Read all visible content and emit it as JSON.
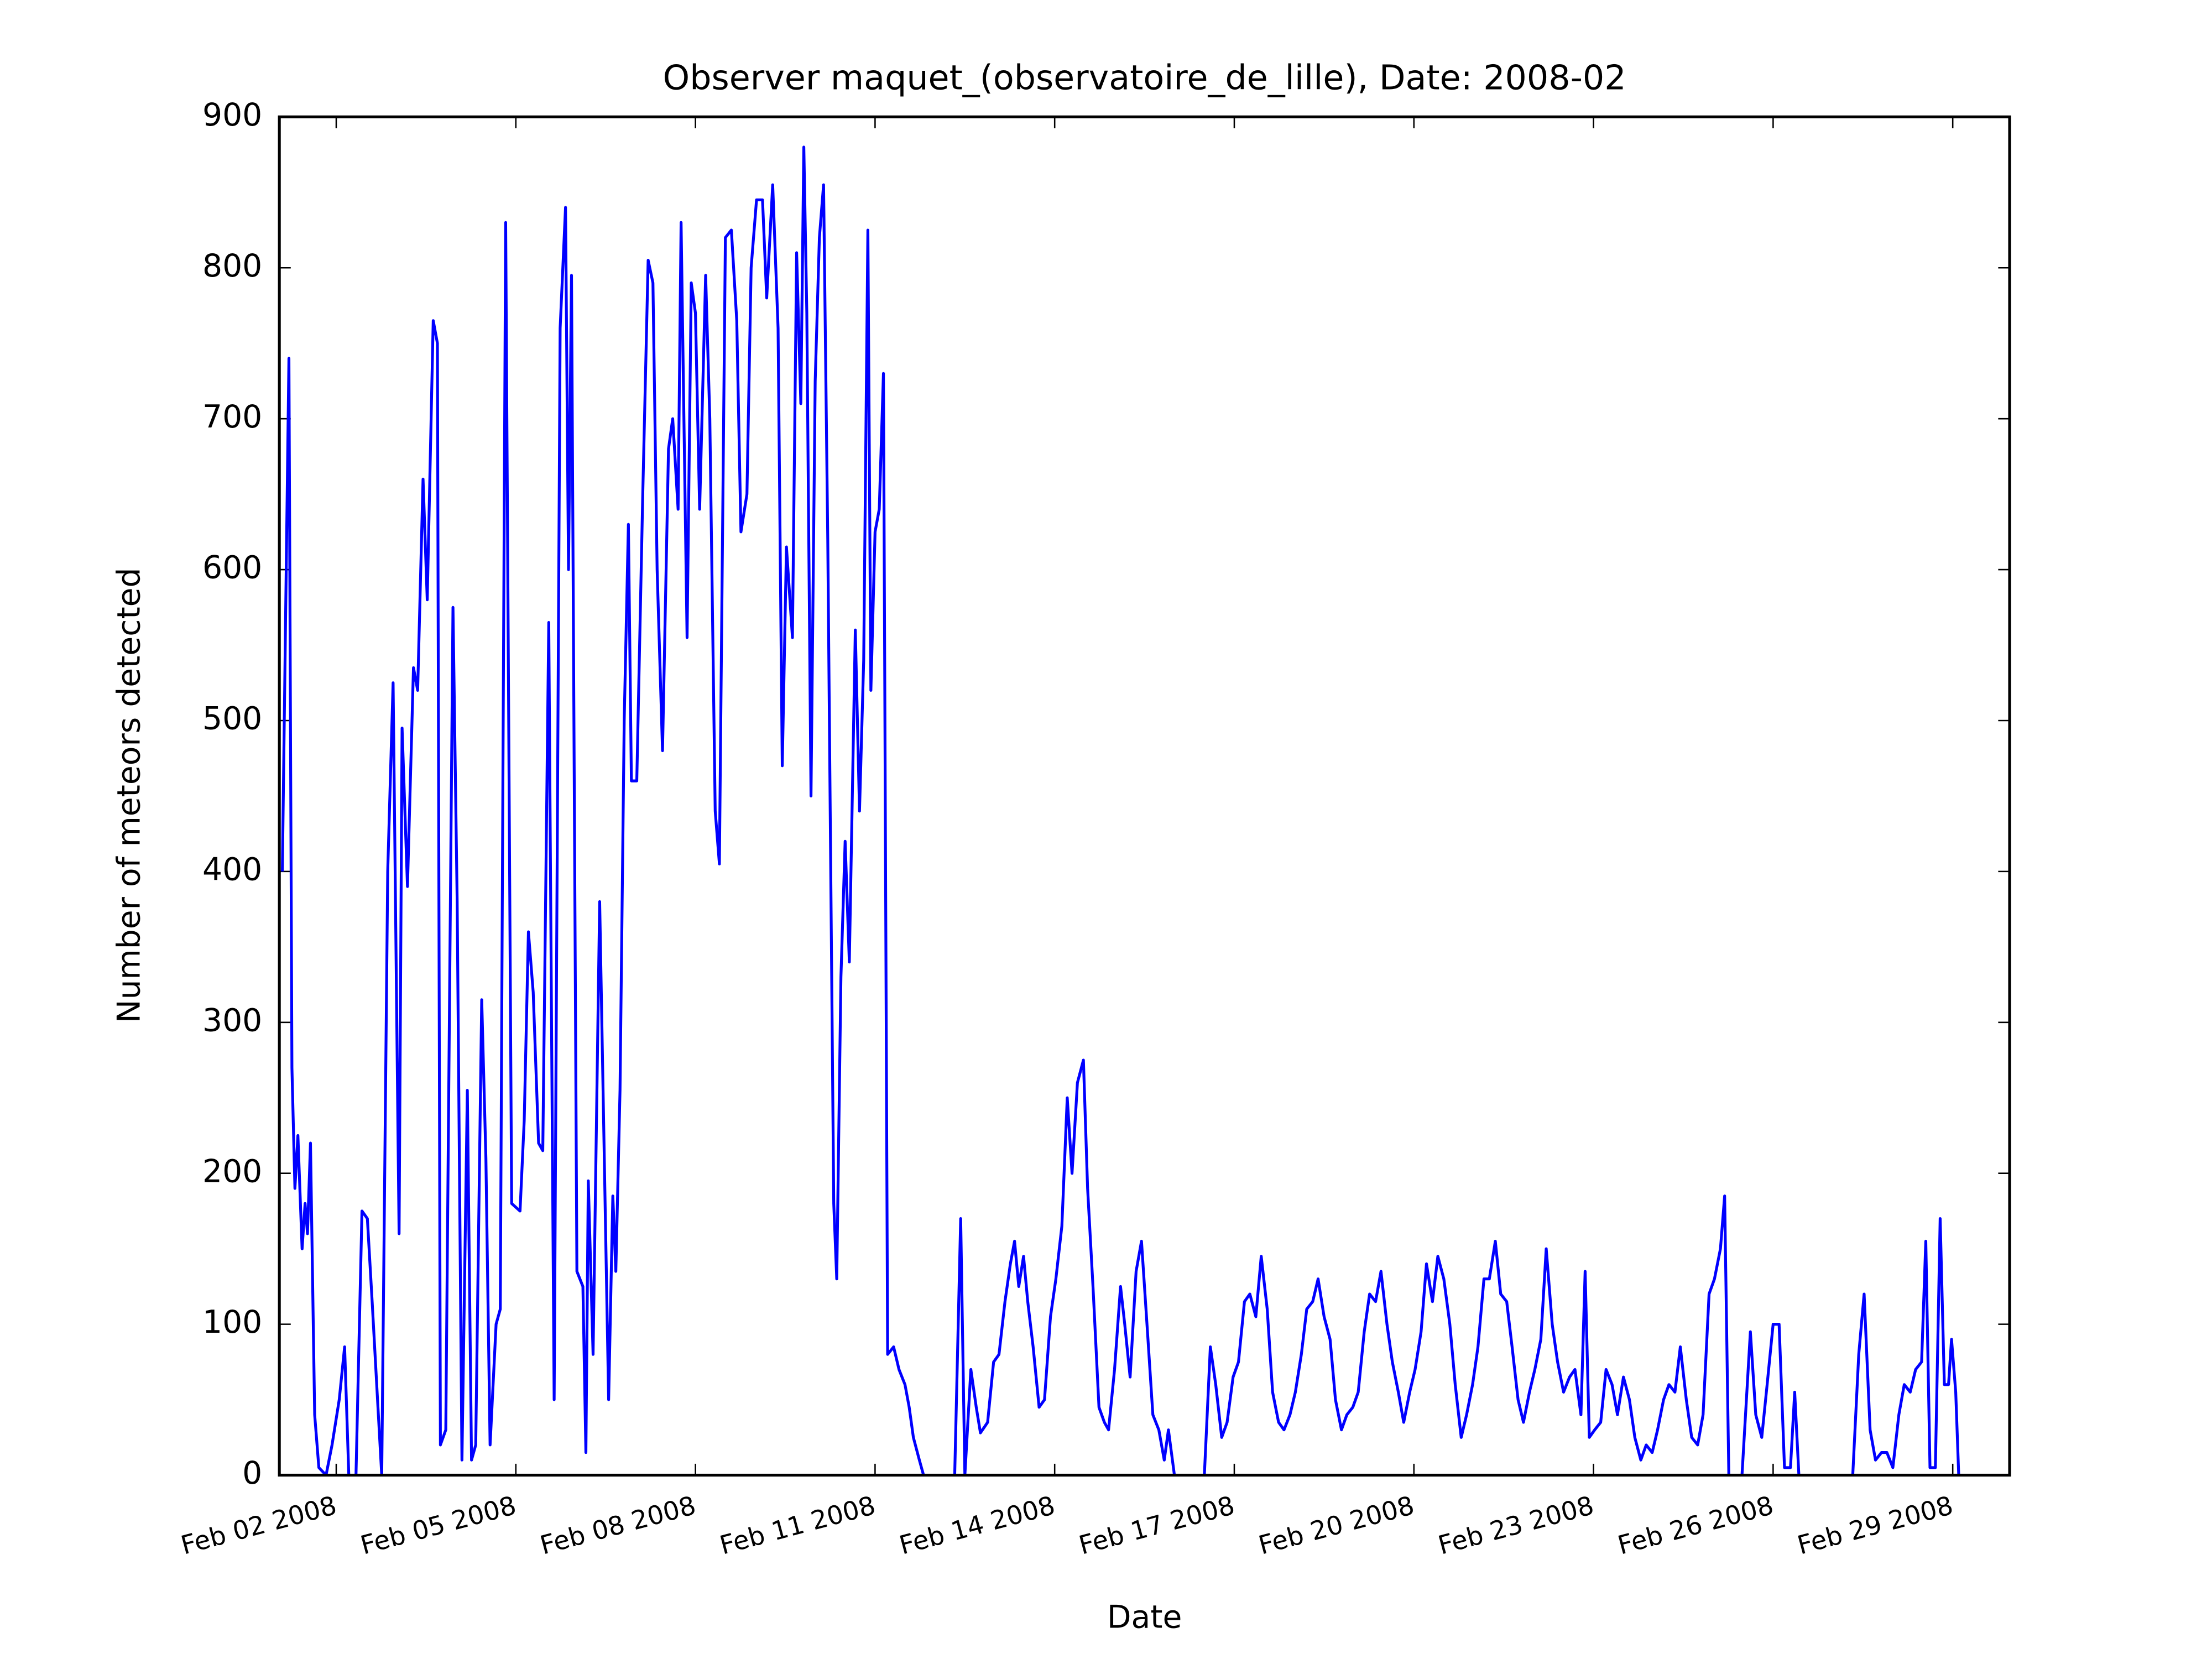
{
  "chart_data": {
    "type": "line",
    "title": "Observer maquet_(observatoire_de_lille), Date: 2008-02",
    "xlabel": "Date",
    "ylabel": "Number of meteors detected",
    "color": "#0000ff",
    "grid": false,
    "xlim": [
      1.05,
      29.95
    ],
    "ylim": [
      0,
      900
    ],
    "xticks": [
      {
        "value": 2,
        "label": "Feb 02 2008"
      },
      {
        "value": 5,
        "label": "Feb 05 2008"
      },
      {
        "value": 8,
        "label": "Feb 08 2008"
      },
      {
        "value": 11,
        "label": "Feb 11 2008"
      },
      {
        "value": 14,
        "label": "Feb 14 2008"
      },
      {
        "value": 17,
        "label": "Feb 17 2008"
      },
      {
        "value": 20,
        "label": "Feb 20 2008"
      },
      {
        "value": 23,
        "label": "Feb 23 2008"
      },
      {
        "value": 26,
        "label": "Feb 26 2008"
      },
      {
        "value": 29,
        "label": "Feb 29 2008"
      }
    ],
    "yticks": [
      0,
      100,
      200,
      300,
      400,
      500,
      600,
      700,
      800,
      900
    ],
    "x": [
      1.1,
      1.21,
      1.26,
      1.31,
      1.36,
      1.43,
      1.48,
      1.52,
      1.57,
      1.64,
      1.71,
      1.83,
      1.93,
      2.05,
      2.14,
      2.21,
      2.33,
      2.43,
      2.52,
      2.6,
      2.69,
      2.76,
      2.86,
      2.95,
      3.05,
      3.1,
      3.19,
      3.29,
      3.36,
      3.45,
      3.52,
      3.62,
      3.69,
      3.74,
      3.83,
      3.95,
      4.02,
      4.1,
      4.19,
      4.26,
      4.33,
      4.43,
      4.5,
      4.57,
      4.67,
      4.74,
      4.83,
      4.93,
      5.07,
      5.14,
      5.21,
      5.29,
      5.38,
      5.45,
      5.55,
      5.64,
      5.74,
      5.83,
      5.88,
      5.93,
      6.02,
      6.12,
      6.17,
      6.21,
      6.29,
      6.4,
      6.55,
      6.62,
      6.67,
      6.74,
      6.81,
      6.88,
      6.93,
      7.02,
      7.12,
      7.21,
      7.29,
      7.36,
      7.45,
      7.55,
      7.62,
      7.71,
      7.76,
      7.86,
      7.93,
      8.0,
      8.07,
      8.17,
      8.24,
      8.33,
      8.4,
      8.5,
      8.6,
      8.69,
      8.76,
      8.86,
      8.93,
      9.02,
      9.12,
      9.19,
      9.29,
      9.38,
      9.45,
      9.52,
      9.62,
      9.69,
      9.76,
      9.81,
      9.86,
      9.93,
      10.0,
      10.07,
      10.14,
      10.21,
      10.31,
      10.36,
      10.43,
      10.5,
      10.57,
      10.67,
      10.74,
      10.81,
      10.88,
      10.93,
      11.0,
      11.07,
      11.14,
      11.21,
      11.31,
      11.4,
      11.5,
      11.57,
      11.64,
      11.74,
      11.81,
      12.33,
      12.43,
      12.5,
      12.6,
      12.69,
      12.76,
      12.88,
      12.98,
      13.07,
      13.17,
      13.26,
      13.33,
      13.4,
      13.48,
      13.55,
      13.64,
      13.74,
      13.83,
      13.93,
      14.02,
      14.12,
      14.21,
      14.29,
      14.38,
      14.48,
      14.55,
      14.64,
      14.74,
      14.83,
      14.9,
      15.0,
      15.1,
      15.17,
      15.26,
      15.36,
      15.45,
      15.55,
      15.64,
      15.74,
      15.83,
      15.9,
      16.0,
      16.5,
      16.6,
      16.69,
      16.79,
      16.88,
      16.98,
      17.07,
      17.17,
      17.26,
      17.36,
      17.45,
      17.55,
      17.64,
      17.74,
      17.83,
      17.93,
      18.02,
      18.12,
      18.21,
      18.31,
      18.4,
      18.5,
      18.6,
      18.69,
      18.79,
      18.88,
      18.98,
      19.07,
      19.17,
      19.26,
      19.36,
      19.45,
      19.55,
      19.64,
      19.74,
      19.83,
      19.93,
      20.02,
      20.12,
      20.21,
      20.31,
      20.4,
      20.5,
      20.6,
      20.69,
      20.79,
      20.88,
      20.98,
      21.07,
      21.17,
      21.26,
      21.36,
      21.45,
      21.55,
      21.64,
      21.74,
      21.83,
      21.93,
      22.02,
      22.12,
      22.21,
      22.31,
      22.4,
      22.5,
      22.6,
      22.69,
      22.79,
      22.86,
      22.93,
      23.02,
      23.12,
      23.21,
      23.31,
      23.4,
      23.5,
      23.6,
      23.69,
      23.79,
      23.88,
      23.98,
      24.07,
      24.17,
      24.26,
      24.36,
      24.45,
      24.55,
      24.64,
      24.74,
      24.83,
      24.93,
      25.02,
      25.12,
      25.19,
      25.26,
      25.48,
      25.62,
      25.71,
      25.81,
      25.9,
      26.0,
      26.1,
      26.19,
      26.29,
      26.36,
      26.43,
      27.33,
      27.43,
      27.52,
      27.62,
      27.71,
      27.81,
      27.9,
      28.0,
      28.1,
      28.19,
      28.29,
      28.38,
      28.48,
      28.55,
      28.62,
      28.71,
      28.79,
      28.86,
      28.93,
      28.98,
      29.05,
      29.1
    ],
    "values": [
      400,
      740,
      270,
      190,
      225,
      150,
      180,
      160,
      220,
      40,
      5,
      0,
      20,
      50,
      85,
      0,
      0,
      175,
      170,
      115,
      50,
      0,
      400,
      525,
      160,
      495,
      390,
      535,
      520,
      660,
      580,
      765,
      750,
      20,
      30,
      575,
      380,
      10,
      255,
      10,
      20,
      315,
      210,
      20,
      100,
      110,
      830,
      180,
      175,
      235,
      360,
      320,
      220,
      215,
      565,
      50,
      760,
      840,
      600,
      795,
      135,
      125,
      15,
      195,
      80,
      380,
      50,
      185,
      135,
      255,
      500,
      630,
      460,
      460,
      650,
      805,
      790,
      600,
      480,
      680,
      700,
      640,
      830,
      555,
      790,
      770,
      640,
      795,
      700,
      440,
      405,
      820,
      825,
      765,
      625,
      650,
      800,
      845,
      845,
      780,
      855,
      760,
      470,
      615,
      555,
      810,
      710,
      880,
      770,
      450,
      725,
      820,
      855,
      620,
      180,
      130,
      330,
      420,
      340,
      560,
      440,
      540,
      825,
      520,
      625,
      640,
      730,
      80,
      85,
      70,
      60,
      45,
      25,
      10,
      0,
      0,
      170,
      0,
      70,
      45,
      28,
      35,
      75,
      80,
      115,
      140,
      155,
      125,
      145,
      115,
      85,
      45,
      50,
      105,
      130,
      165,
      250,
      200,
      260,
      275,
      190,
      125,
      45,
      35,
      30,
      70,
      125,
      100,
      65,
      135,
      155,
      95,
      40,
      30,
      10,
      30,
      0,
      0,
      85,
      60,
      25,
      35,
      65,
      75,
      115,
      120,
      105,
      145,
      110,
      55,
      35,
      30,
      40,
      55,
      80,
      110,
      115,
      130,
      105,
      90,
      50,
      30,
      40,
      45,
      55,
      95,
      120,
      115,
      135,
      100,
      75,
      55,
      35,
      55,
      70,
      95,
      140,
      115,
      145,
      130,
      100,
      60,
      25,
      40,
      60,
      85,
      130,
      130,
      155,
      120,
      115,
      85,
      50,
      35,
      55,
      70,
      90,
      150,
      100,
      75,
      55,
      65,
      70,
      40,
      135,
      25,
      30,
      35,
      70,
      60,
      40,
      65,
      50,
      25,
      10,
      20,
      15,
      30,
      50,
      60,
      55,
      85,
      50,
      25,
      20,
      40,
      120,
      130,
      150,
      185,
      0,
      0,
      95,
      40,
      25,
      60,
      100,
      100,
      5,
      5,
      55,
      0,
      0,
      80,
      120,
      30,
      10,
      15,
      15,
      5,
      40,
      60,
      55,
      70,
      75,
      155,
      5,
      5,
      170,
      60,
      60,
      90,
      55,
      0
    ]
  }
}
